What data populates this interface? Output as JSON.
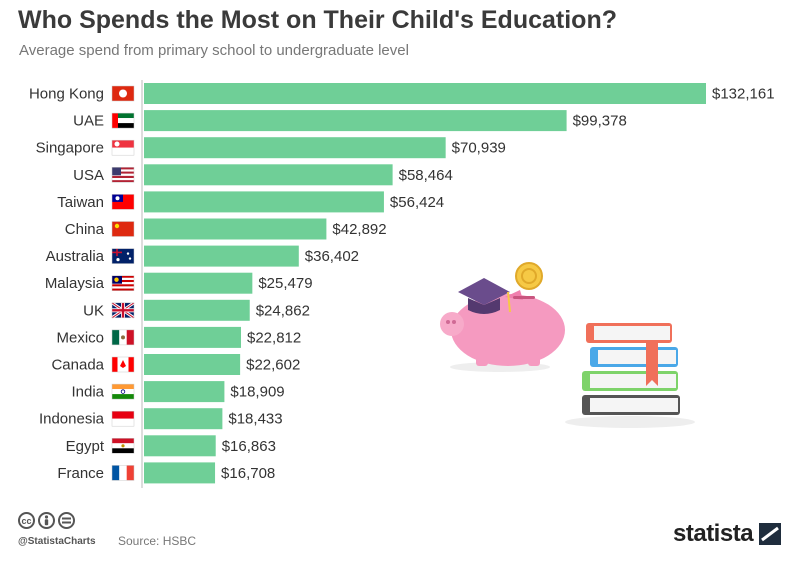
{
  "title": "Who Spends the Most on Their Child's Education?",
  "subtitle": "Average spend from primary school to undergraduate level",
  "chart_data": {
    "type": "bar",
    "orientation": "horizontal",
    "categories": [
      "Hong Kong",
      "UAE",
      "Singapore",
      "USA",
      "Taiwan",
      "China",
      "Australia",
      "Malaysia",
      "UK",
      "Mexico",
      "Canada",
      "India",
      "Indonesia",
      "Egypt",
      "France"
    ],
    "values": [
      132161,
      99378,
      70939,
      58464,
      56424,
      42892,
      36402,
      25479,
      24862,
      22812,
      22602,
      18909,
      18433,
      16863,
      16708
    ],
    "value_labels": [
      "$132,161",
      "$99,378",
      "$70,939",
      "$58,464",
      "$56,424",
      "$42,892",
      "$36,402",
      "$25,479",
      "$24,862",
      "$22,812",
      "$22,602",
      "$18,909",
      "$18,433",
      "$16,863",
      "$16,708"
    ],
    "flag_icons": [
      "hong-kong-flag-icon",
      "uae-flag-icon",
      "singapore-flag-icon",
      "usa-flag-icon",
      "taiwan-flag-icon",
      "china-flag-icon",
      "australia-flag-icon",
      "malaysia-flag-icon",
      "uk-flag-icon",
      "mexico-flag-icon",
      "canada-flag-icon",
      "india-flag-icon",
      "indonesia-flag-icon",
      "egypt-flag-icon",
      "france-flag-icon"
    ],
    "xlim": [
      0,
      132161
    ],
    "grid": false,
    "bar_color": "#6fcf97"
  },
  "illustration": {
    "icons": [
      "piggy-bank-icon",
      "graduation-cap-icon",
      "coin-icon",
      "books-icon"
    ]
  },
  "footer": {
    "license_icons": [
      "cc-icon",
      "by-icon",
      "nd-icon"
    ],
    "handle": "@StatistaCharts",
    "source": "Source: HSBC",
    "brand": "statista"
  },
  "colors": {
    "bar": "#6fcf97",
    "title": "#3a3a3a",
    "subtitle": "#777777"
  }
}
